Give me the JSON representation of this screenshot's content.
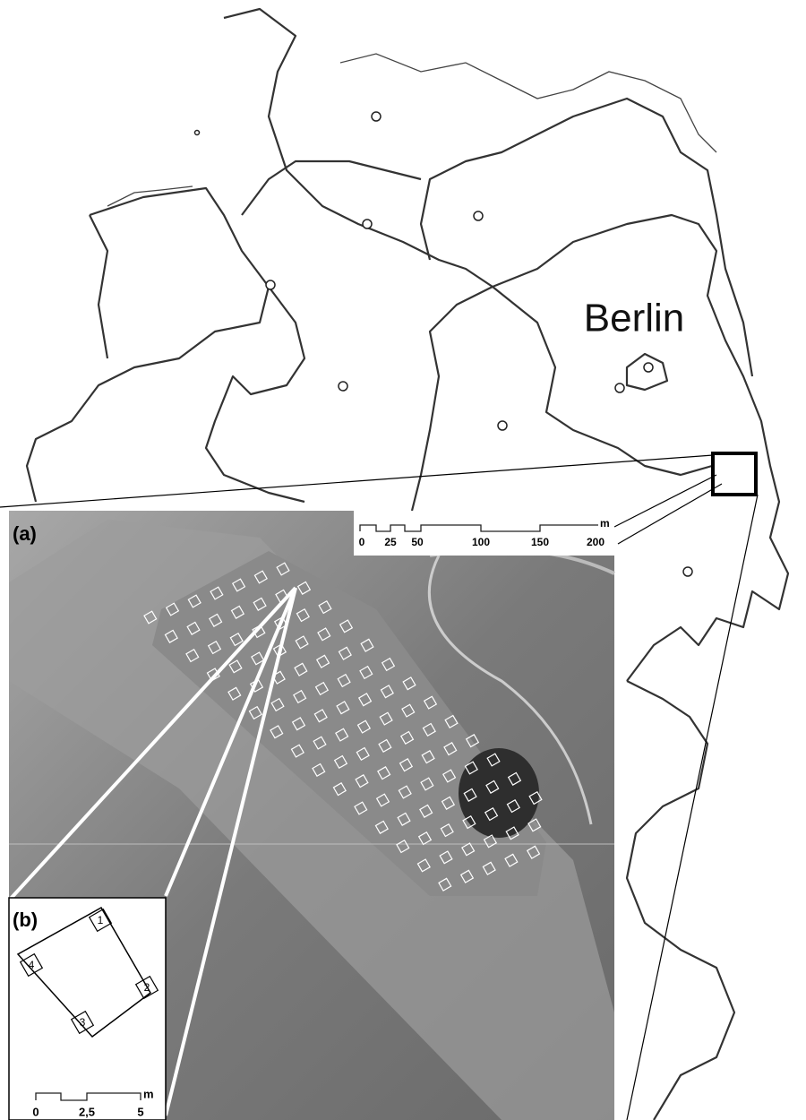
{
  "map": {
    "city_label": "Berlin",
    "scale": {
      "labels": [
        "0",
        "25",
        "50",
        "100",
        "150",
        "200"
      ],
      "unit": "m"
    }
  },
  "panel_a": {
    "label": "(a)"
  },
  "panel_b": {
    "label": "(b)",
    "corners": [
      "1",
      "2",
      "3",
      "4"
    ],
    "scale": {
      "labels": [
        "0",
        "2,5",
        "5"
      ],
      "unit": "m"
    }
  }
}
